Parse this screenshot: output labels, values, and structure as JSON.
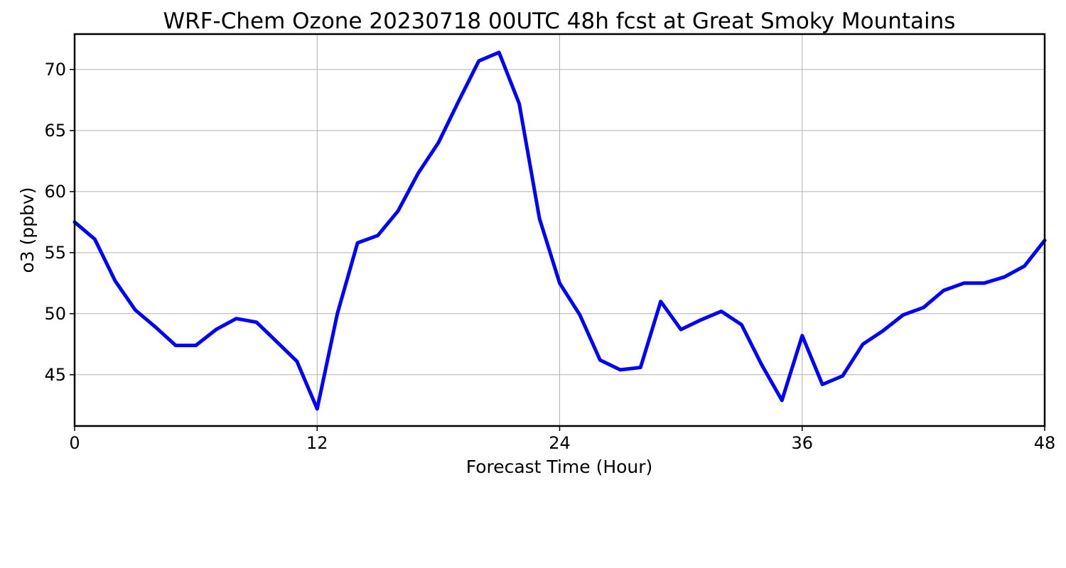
{
  "chart_data": {
    "type": "line",
    "title": "WRF-Chem Ozone  20230718 00UTC 48h fcst at Great Smoky Mountains",
    "xlabel": "Forecast Time (Hour)",
    "ylabel": "o3  (ppbv)",
    "xlim": [
      0,
      48
    ],
    "ylim": [
      40.8,
      72.9
    ],
    "xticks": [
      0,
      12,
      24,
      36,
      48
    ],
    "yticks": [
      45,
      50,
      55,
      60,
      65,
      70
    ],
    "grid": true,
    "line_color": "#0000ff",
    "x": [
      0,
      1,
      2,
      3,
      4,
      5,
      6,
      7,
      8,
      9,
      10,
      11,
      12,
      13,
      14,
      15,
      16,
      17,
      18,
      19,
      20,
      21,
      22,
      23,
      24,
      25,
      26,
      27,
      28,
      29,
      30,
      31,
      32,
      33,
      34,
      35,
      36,
      37,
      38,
      39,
      40,
      41,
      42,
      43,
      44,
      45,
      46,
      47,
      48
    ],
    "values": [
      57.5,
      56.1,
      52.7,
      50.3,
      48.9,
      47.4,
      47.4,
      48.7,
      49.6,
      49.3,
      47.7,
      46.1,
      42.2,
      50.0,
      55.8,
      56.4,
      58.4,
      61.5,
      64.0,
      67.4,
      70.7,
      71.4,
      67.2,
      57.8,
      52.5,
      49.9,
      46.2,
      45.4,
      45.6,
      51.0,
      48.7,
      49.5,
      50.2,
      49.1,
      45.8,
      42.9,
      48.2,
      44.2,
      44.9,
      47.5,
      48.6,
      49.9,
      50.5,
      51.9,
      52.5,
      52.5,
      53.0,
      53.9,
      56.0
    ]
  }
}
